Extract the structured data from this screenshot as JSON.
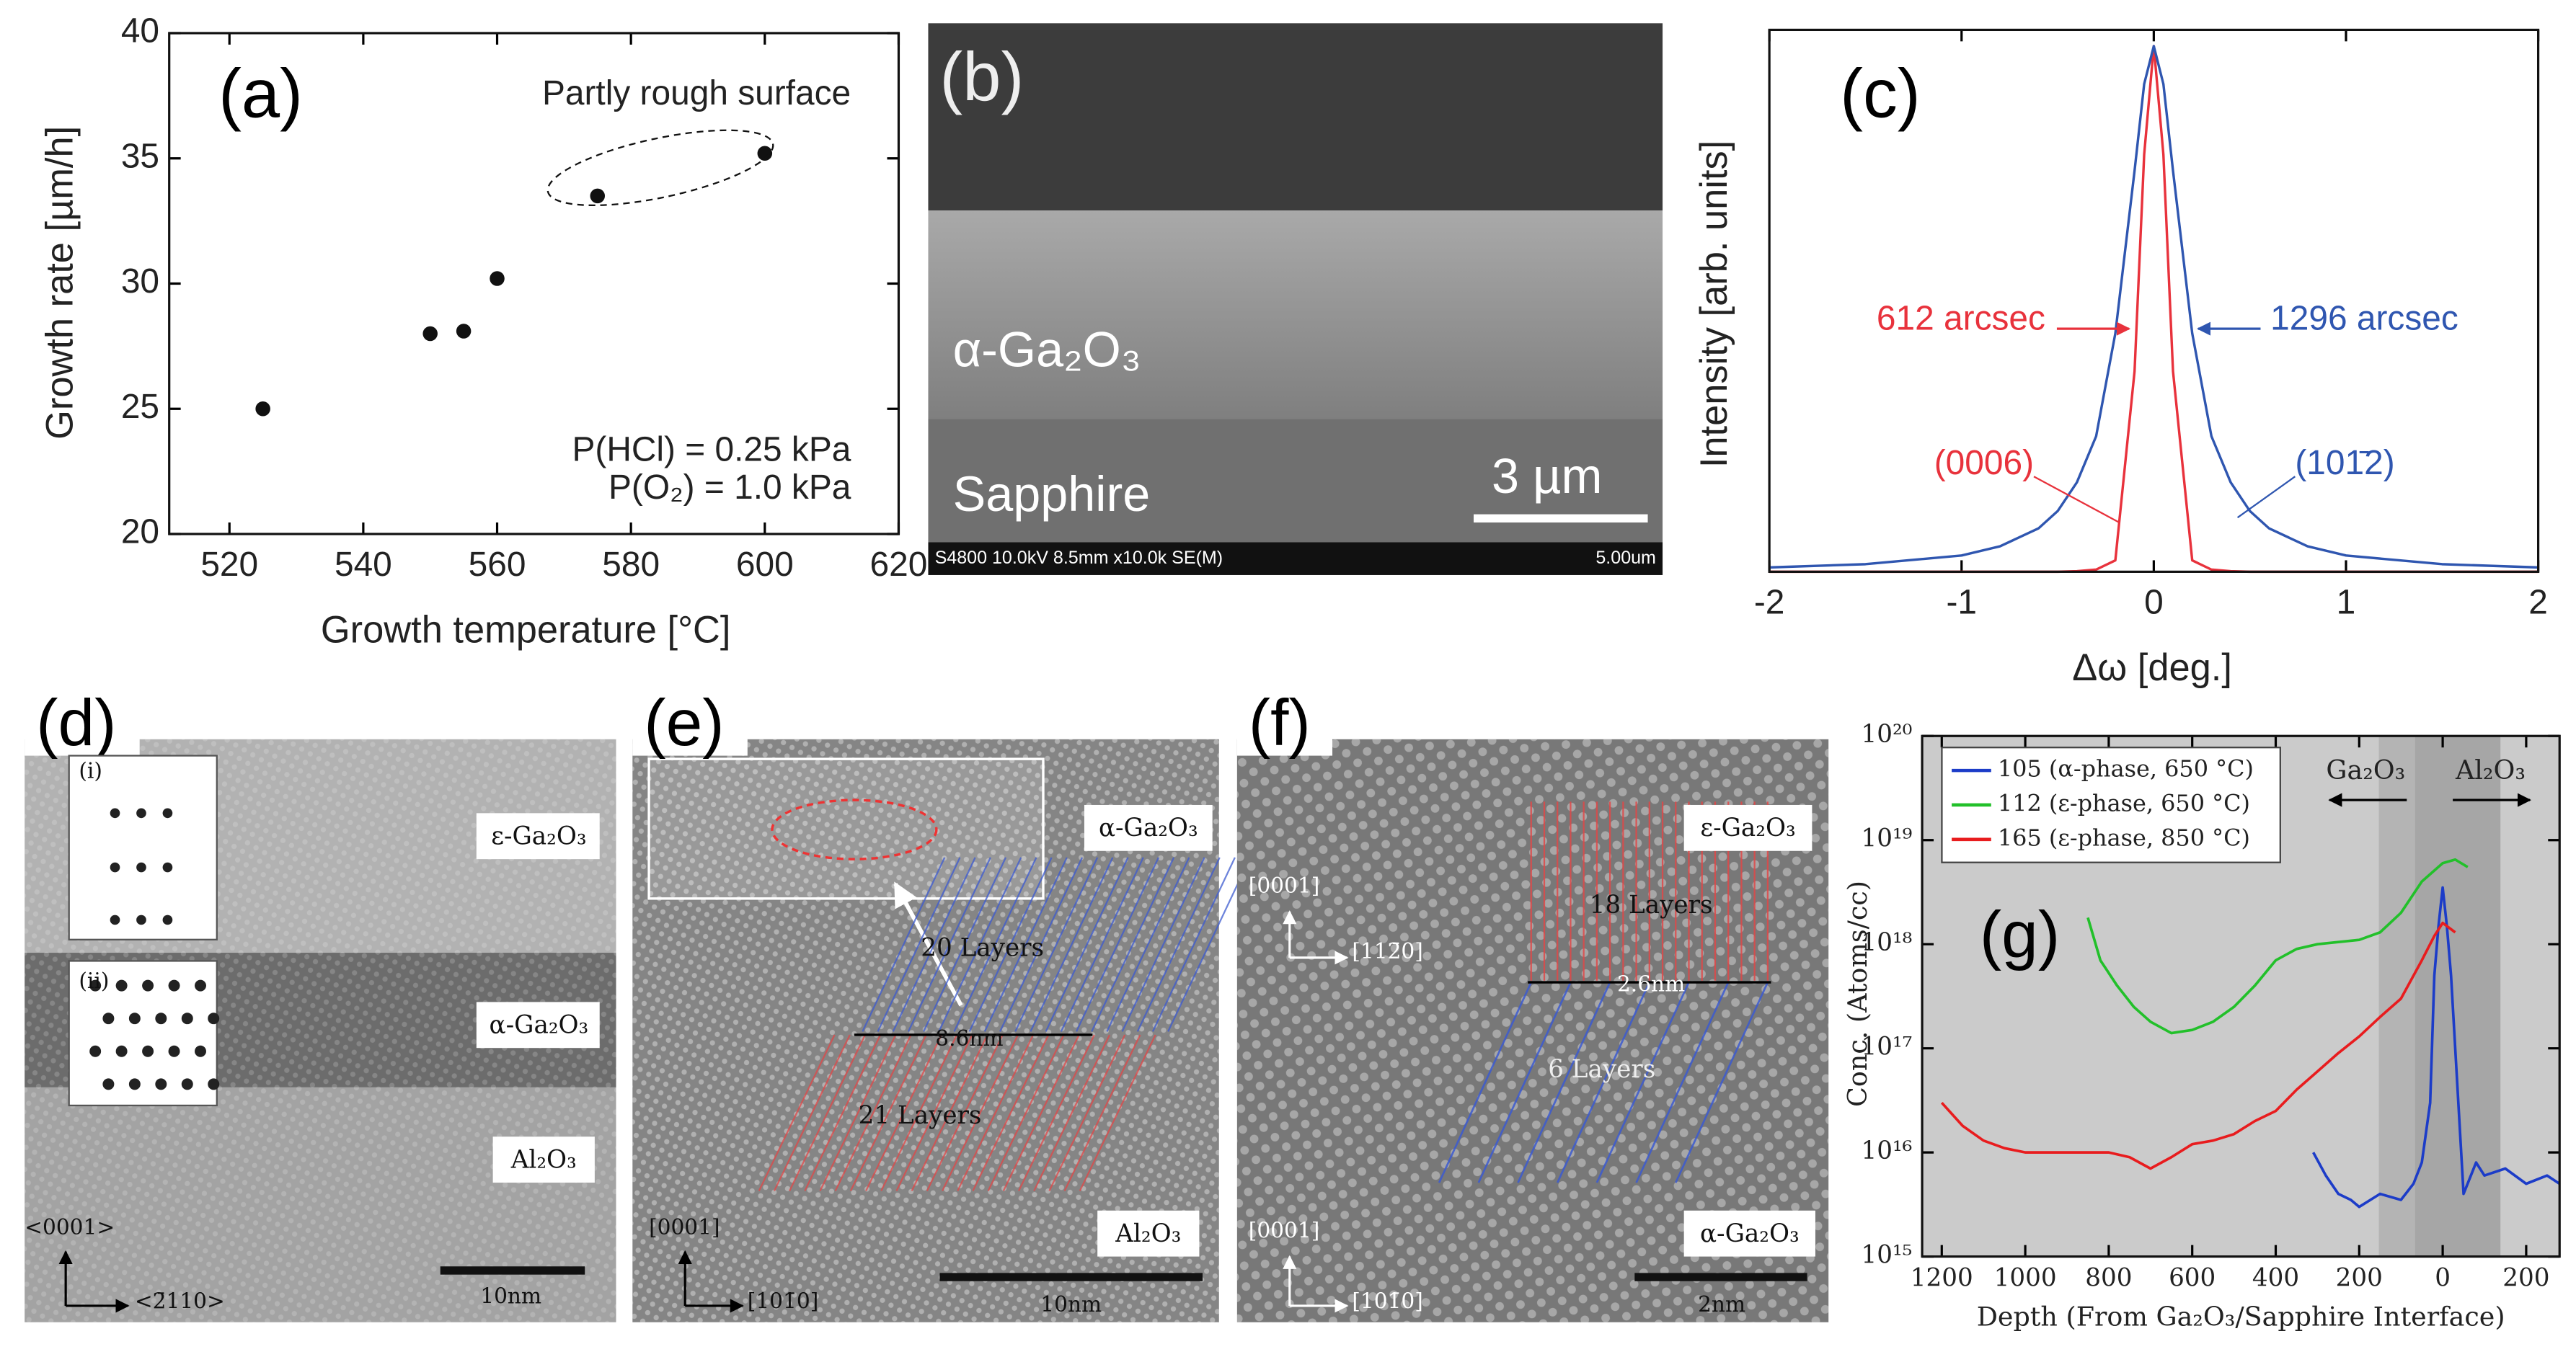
{
  "chart_data": [
    {
      "type": "scatter",
      "panel": "(a)",
      "xlabel": "Growth temperature [°C]",
      "ylabel": "Growth rate [µm/h]",
      "x": [
        525,
        550,
        555,
        560,
        575,
        600
      ],
      "values": [
        25,
        28,
        28.1,
        30.2,
        33.5,
        35.2
      ],
      "color": "#111111",
      "xlim": [
        511,
        620
      ],
      "ylim": [
        20,
        40
      ],
      "xticks": [
        520,
        540,
        560,
        580,
        600,
        620
      ],
      "yticks": [
        20,
        25,
        30,
        35,
        40
      ],
      "annotations": [
        {
          "text": "Partly rough surface"
        },
        {
          "text": "P(HCl) = 0.25 kPa"
        },
        {
          "text": "P(O₂) = 1.0 kPa"
        }
      ]
    },
    {
      "type": "line",
      "panel": "(c)",
      "xlabel": "Δω [deg.]",
      "ylabel": "Intensity [arb. units]",
      "x": [
        -2,
        -1.5,
        -1,
        -0.8,
        -0.6,
        -0.5,
        -0.4,
        -0.3,
        -0.2,
        -0.1,
        -0.05,
        0,
        0.05,
        0.1,
        0.2,
        0.3,
        0.4,
        0.5,
        0.6,
        0.8,
        1,
        1.5,
        2
      ],
      "series": [
        {
          "name": "(0006)",
          "color": "#e8323c",
          "values": [
            0,
            0,
            0,
            0,
            0,
            0,
            0.001,
            0.004,
            0.021,
            0.37,
            0.77,
            0.97,
            0.77,
            0.37,
            0.021,
            0.004,
            0.001,
            0,
            0,
            0,
            0,
            0,
            0
          ]
        },
        {
          "name": "(101̄2)",
          "color": "#2f56b0",
          "values": [
            0.008,
            0.014,
            0.03,
            0.047,
            0.08,
            0.112,
            0.165,
            0.25,
            0.44,
            0.74,
            0.9,
            0.97,
            0.9,
            0.74,
            0.44,
            0.25,
            0.165,
            0.112,
            0.08,
            0.047,
            0.03,
            0.014,
            0.008
          ]
        }
      ],
      "xlim": [
        -2,
        2
      ],
      "ylim": [
        0,
        1
      ],
      "xticks": [
        -2,
        -1,
        0,
        1,
        2
      ],
      "annotations": [
        {
          "text": "612 arcsec",
          "color": "#e8323c"
        },
        {
          "text": "1296 arcsec",
          "color": "#2f56b0"
        },
        {
          "text": "(0006)",
          "color": "#e8323c"
        },
        {
          "text": "(101̄2)",
          "color": "#2f56b0"
        }
      ]
    },
    {
      "type": "line",
      "panel": "(g)",
      "xlabel": "Depth (From Ga₂O₃/Sapphire Interface)",
      "ylabel": "Conc. (Atoms/cc)",
      "log_scale": true,
      "series": [
        {
          "name": "105 (α-phase, 650 °C)",
          "color": "#1c3cc8",
          "x": [
            310,
            280,
            250,
            220,
            200,
            150,
            100,
            70,
            50,
            30,
            20,
            10,
            0,
            -10,
            -20,
            -40,
            -50,
            -80,
            -100,
            -150,
            -200,
            -250,
            -280
          ],
          "values": [
            1e+16,
            6000000000000000.0,
            4000000000000000.0,
            3500000000000000.0,
            3000000000000000.0,
            4000000000000000.0,
            3500000000000000.0,
            5000000000000000.0,
            8000000000000000.0,
            3e+16,
            5e+17,
            1.5e+18,
            3.5e+18,
            1.5e+18,
            5e+17,
            2e+16,
            4000000000000000.0,
            8000000000000000.0,
            6000000000000000.0,
            7000000000000000.0,
            5000000000000000.0,
            6000000000000000.0,
            5000000000000000.0
          ]
        },
        {
          "name": "112 (ε-phase, 650 °C)",
          "color": "#22c02a",
          "x": [
            850,
            820,
            780,
            740,
            700,
            650,
            600,
            550,
            500,
            450,
            400,
            350,
            300,
            250,
            200,
            150,
            100,
            50,
            0,
            -30,
            -60
          ],
          "values": [
            1.8e+18,
            7e+17,
            4e+17,
            2.5e+17,
            1.8e+17,
            1.4e+17,
            1.5e+17,
            1.8e+17,
            2.5e+17,
            4e+17,
            7e+17,
            9e+17,
            1e+18,
            1.05e+18,
            1.1e+18,
            1.3e+18,
            2e+18,
            4e+18,
            6e+18,
            6.5e+18,
            5.5e+18
          ]
        },
        {
          "name": "165 (ε-phase, 850 °C)",
          "color": "#e81c1e",
          "x": [
            1200,
            1150,
            1100,
            1050,
            1000,
            900,
            800,
            750,
            700,
            650,
            600,
            550,
            500,
            450,
            400,
            350,
            300,
            250,
            200,
            150,
            100,
            50,
            20,
            0,
            -30
          ],
          "values": [
            3e+16,
            1.8e+16,
            1.3e+16,
            1.1e+16,
            1e+16,
            1e+16,
            1e+16,
            9000000000000000.0,
            7000000000000000.0,
            9000000000000000.0,
            1.2e+16,
            1.3e+16,
            1.5e+16,
            2e+16,
            2.5e+16,
            4e+16,
            6e+16,
            9e+16,
            1.3e+17,
            2e+17,
            3e+17,
            7e+17,
            1.2e+18,
            1.6e+18,
            1.3e+18
          ]
        }
      ],
      "xlim": [
        1247,
        -280
      ],
      "ylim": [
        1000000000000000.0,
        1e+20
      ],
      "xticks": [
        1200,
        1000,
        800,
        600,
        400,
        200,
        0,
        {
          "value": -200,
          "label": "200"
        }
      ],
      "yticks": [
        {
          "value": 1000000000000000.0,
          "label": "10¹⁵"
        },
        {
          "value": 1e+16,
          "label": "10¹⁶"
        },
        {
          "value": 1e+17,
          "label": "10¹⁷"
        },
        {
          "value": 1e+18,
          "label": "10¹⁸"
        },
        {
          "value": 1e+19,
          "label": "10¹⁹"
        },
        {
          "value": 1e+20,
          "label": "10²⁰"
        }
      ],
      "annotations": [
        {
          "text": "Ga₂O₃"
        },
        {
          "text": "Al₂O₃"
        }
      ]
    }
  ],
  "images": [
    {
      "panel": "(b)",
      "texts": [
        "α-Ga₂O₃",
        "Sapphire",
        "3 µm",
        "S4800 10.0kV 8.5mm x10.0k SE(M)",
        "5.00um"
      ]
    },
    {
      "panel": "(d)",
      "texts": [
        "(i)",
        "(ii)",
        "ε-Ga₂O₃",
        "α-Ga₂O₃",
        "Al₂O₃",
        "<0001>",
        "<2̄110>",
        "10nm"
      ]
    },
    {
      "panel": "(e)",
      "texts": [
        "α-Ga₂O₃",
        "20 Layers",
        "8.6nm",
        "21 Layers",
        "Al₂O₃",
        "[0001]",
        "[101̄0]",
        "10nm"
      ]
    },
    {
      "panel": "(f)",
      "texts": [
        "ε-Ga₂O₃",
        "18 Layers",
        "2.6nm",
        "6 Layers",
        "α-Ga₂O₃",
        "[0001]",
        "[112̄0]",
        "[0001]",
        "[101̄0]",
        "2nm"
      ]
    }
  ]
}
